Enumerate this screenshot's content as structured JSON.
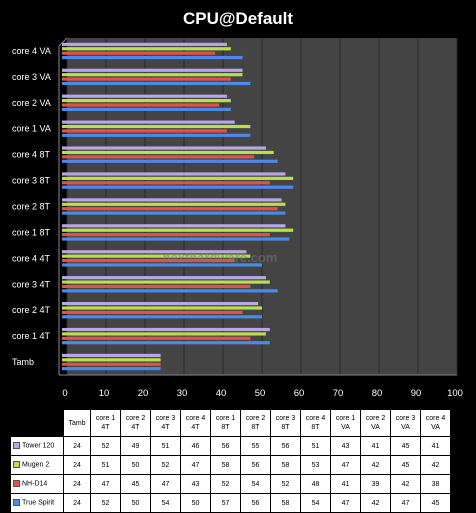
{
  "chart_data": {
    "type": "bar",
    "orientation": "horizontal",
    "title": "CPU@Default",
    "categories": [
      "Tamb",
      "core 1  4T",
      "core 2 4T",
      "core 3  4T",
      "core 4  4T",
      "core 1  8T",
      "core 2 8T",
      "core 3  8T",
      "core 4  8T",
      "core 1 VA",
      "core 2 VA",
      "core 3 VA",
      "core 4 VA"
    ],
    "table_headers": [
      "Tamb",
      "core 1 4T",
      "core 2 4T",
      "core 3 4T",
      "core 4 4T",
      "core 1 8T",
      "core 2 8T",
      "core 3 8T",
      "core 4 8T",
      "core 1 VA",
      "core 2 VA",
      "core 3 VA",
      "core 4 VA"
    ],
    "series": [
      {
        "name": "Tower 120",
        "color": "#b8a6e6",
        "values": [
          24,
          52,
          49,
          51,
          46,
          56,
          55,
          56,
          51,
          43,
          41,
          45,
          41
        ]
      },
      {
        "name": "Mugen 2",
        "color": "#b8e04a",
        "values": [
          24,
          51,
          50,
          52,
          47,
          58,
          56,
          58,
          53,
          47,
          42,
          45,
          42
        ]
      },
      {
        "name": "NH-D14",
        "color": "#e0524a",
        "values": [
          24,
          47,
          45,
          47,
          43,
          52,
          54,
          52,
          48,
          41,
          39,
          42,
          38
        ]
      },
      {
        "name": "True Spirit",
        "color": "#4a8ae8",
        "values": [
          24,
          52,
          50,
          54,
          50,
          57,
          56,
          58,
          54,
          47,
          42,
          47,
          45
        ]
      }
    ],
    "xlim": [
      0,
      100
    ],
    "xticks": [
      0,
      10,
      20,
      30,
      40,
      50,
      60,
      70,
      80,
      90,
      100
    ],
    "grid": true,
    "legend": "data-table-below",
    "watermark": "nexthardware.com"
  }
}
